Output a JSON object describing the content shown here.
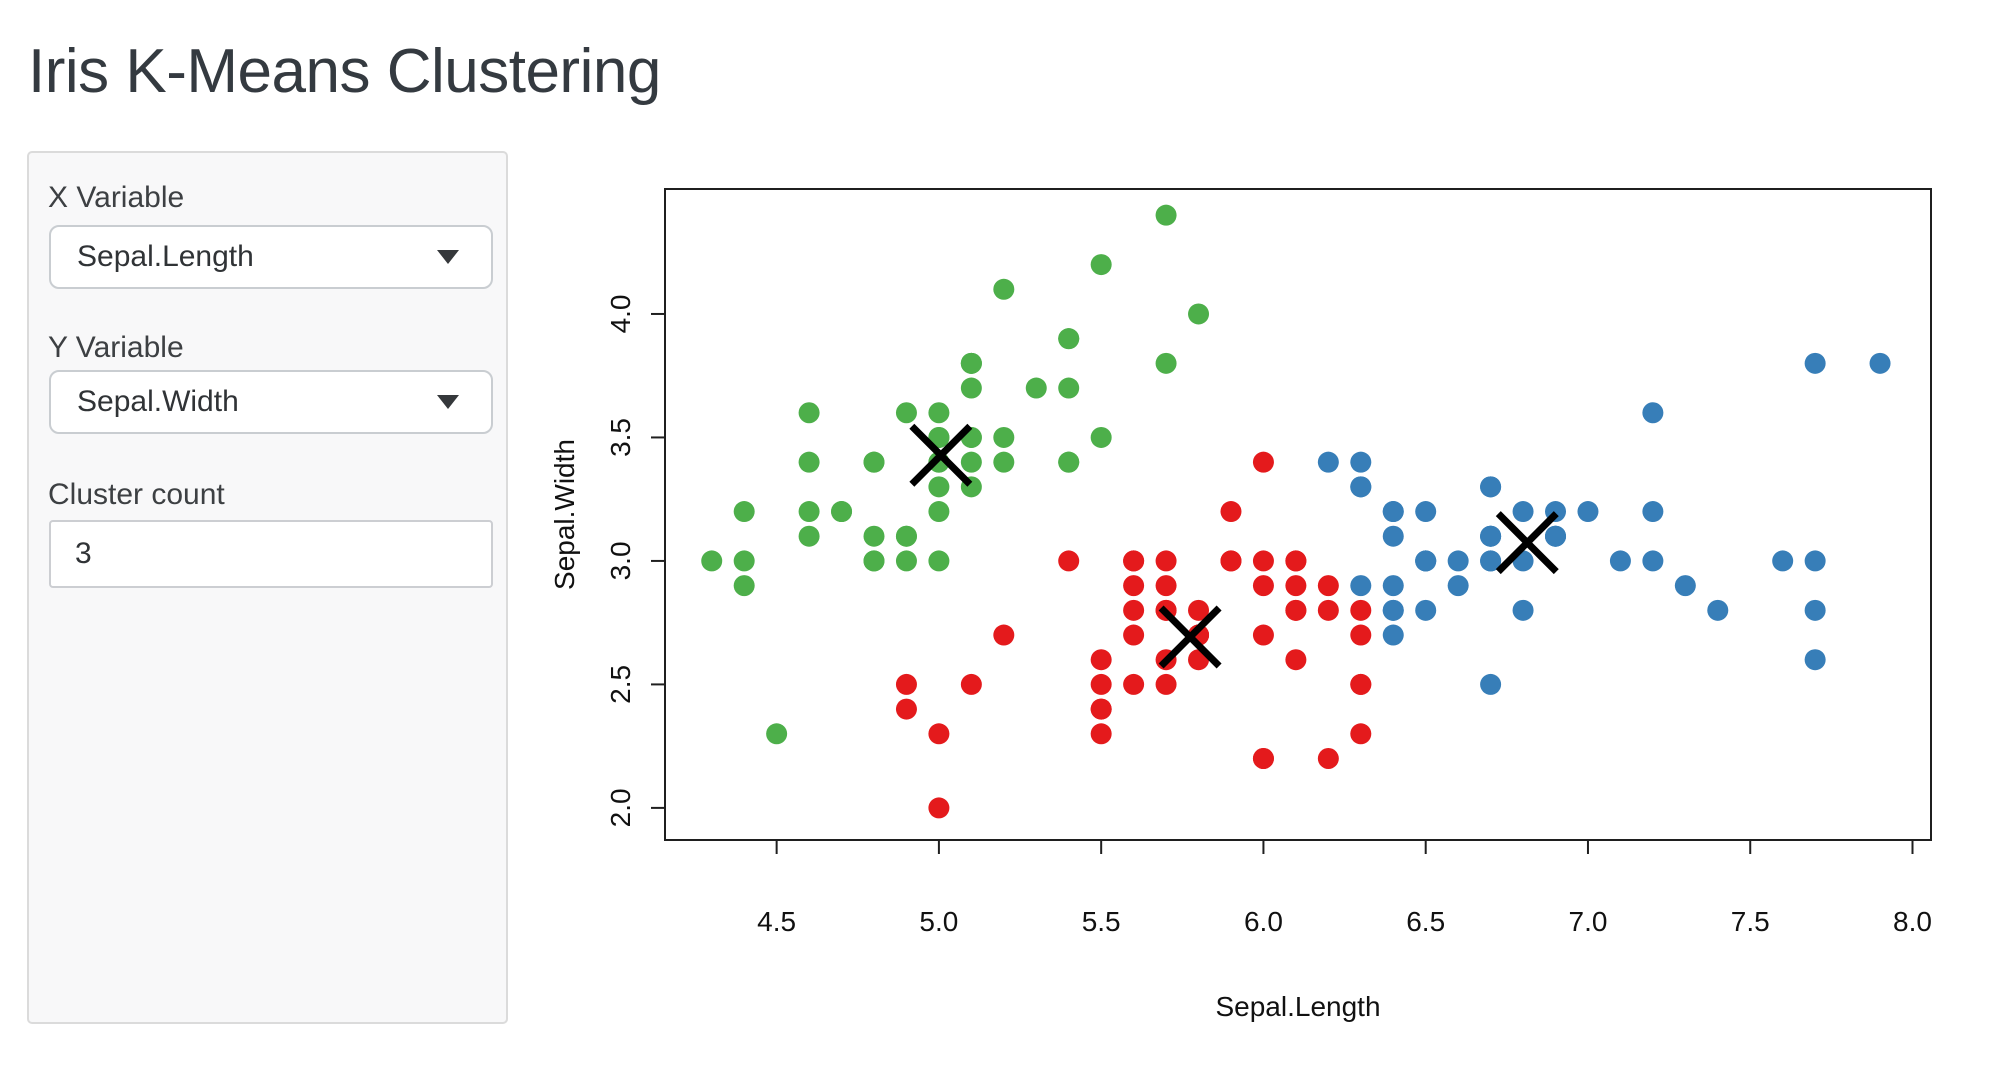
{
  "page": {
    "title": "Iris K-Means Clustering"
  },
  "sidebar": {
    "x_variable": {
      "label": "X Variable",
      "value": "Sepal.Length"
    },
    "y_variable": {
      "label": "Y Variable",
      "value": "Sepal.Width"
    },
    "cluster_count": {
      "label": "Cluster count",
      "value": "3"
    }
  },
  "icons": {
    "dropdown_caret": "triangle-down"
  },
  "colors": {
    "cluster1": "#4daf4a",
    "cluster2": "#e41a1c",
    "cluster3": "#377eb8",
    "center_marker": "#000000",
    "axis": "#1f1f1f",
    "plot_text": "#111111"
  },
  "chart_data": {
    "type": "scatter",
    "xlabel": "Sepal.Length",
    "ylabel": "Sepal.Width",
    "xlim": [
      4.156,
      8.057
    ],
    "ylim": [
      1.87,
      4.506
    ],
    "xticks": [
      4.5,
      5.0,
      5.5,
      6.0,
      6.5,
      7.0,
      7.5,
      8.0
    ],
    "yticks": [
      2.0,
      2.5,
      3.0,
      3.5,
      4.0
    ],
    "grid": false,
    "legend": "none",
    "point_radius_px": 10.5,
    "series": [
      {
        "name": "cluster-1-green",
        "color": "#4daf4a",
        "points": [
          [
            5.1,
            3.5
          ],
          [
            4.9,
            3.0
          ],
          [
            4.7,
            3.2
          ],
          [
            4.6,
            3.1
          ],
          [
            5.0,
            3.6
          ],
          [
            5.4,
            3.9
          ],
          [
            4.6,
            3.4
          ],
          [
            5.0,
            3.4
          ],
          [
            4.4,
            2.9
          ],
          [
            4.9,
            3.1
          ],
          [
            5.4,
            3.7
          ],
          [
            4.8,
            3.4
          ],
          [
            4.8,
            3.0
          ],
          [
            4.3,
            3.0
          ],
          [
            5.8,
            4.0
          ],
          [
            5.7,
            4.4
          ],
          [
            5.4,
            3.9
          ],
          [
            5.1,
            3.5
          ],
          [
            5.7,
            3.8
          ],
          [
            5.1,
            3.8
          ],
          [
            5.4,
            3.4
          ],
          [
            5.1,
            3.7
          ],
          [
            4.6,
            3.6
          ],
          [
            5.1,
            3.3
          ],
          [
            4.8,
            3.4
          ],
          [
            5.0,
            3.0
          ],
          [
            5.0,
            3.4
          ],
          [
            5.2,
            3.5
          ],
          [
            5.2,
            3.4
          ],
          [
            4.7,
            3.2
          ],
          [
            4.8,
            3.1
          ],
          [
            5.4,
            3.4
          ],
          [
            5.2,
            4.1
          ],
          [
            5.5,
            4.2
          ],
          [
            4.9,
            3.1
          ],
          [
            5.0,
            3.2
          ],
          [
            5.5,
            3.5
          ],
          [
            4.9,
            3.6
          ],
          [
            4.4,
            3.0
          ],
          [
            5.1,
            3.4
          ],
          [
            5.0,
            3.5
          ],
          [
            4.5,
            2.3
          ],
          [
            4.4,
            3.2
          ],
          [
            5.0,
            3.5
          ],
          [
            5.1,
            3.8
          ],
          [
            4.8,
            3.0
          ],
          [
            5.1,
            3.8
          ],
          [
            4.6,
            3.2
          ],
          [
            5.3,
            3.7
          ],
          [
            5.0,
            3.3
          ]
        ]
      },
      {
        "name": "cluster-2-red",
        "color": "#e41a1c",
        "points": [
          [
            5.5,
            2.3
          ],
          [
            5.7,
            2.8
          ],
          [
            4.9,
            2.4
          ],
          [
            5.2,
            2.7
          ],
          [
            5.0,
            2.0
          ],
          [
            5.9,
            3.0
          ],
          [
            6.0,
            2.2
          ],
          [
            6.1,
            2.9
          ],
          [
            5.6,
            2.9
          ],
          [
            5.6,
            3.0
          ],
          [
            5.8,
            2.7
          ],
          [
            6.2,
            2.2
          ],
          [
            5.6,
            2.5
          ],
          [
            5.9,
            3.2
          ],
          [
            6.1,
            2.8
          ],
          [
            6.3,
            2.5
          ],
          [
            6.1,
            2.8
          ],
          [
            6.0,
            2.9
          ],
          [
            5.7,
            2.6
          ],
          [
            5.5,
            2.4
          ],
          [
            5.5,
            2.4
          ],
          [
            5.8,
            2.7
          ],
          [
            6.0,
            2.7
          ],
          [
            5.4,
            3.0
          ],
          [
            6.0,
            3.4
          ],
          [
            6.3,
            2.3
          ],
          [
            5.6,
            3.0
          ],
          [
            5.5,
            2.5
          ],
          [
            5.5,
            2.6
          ],
          [
            6.1,
            3.0
          ],
          [
            5.8,
            2.6
          ],
          [
            5.0,
            2.3
          ],
          [
            5.6,
            2.7
          ],
          [
            5.7,
            3.0
          ],
          [
            5.7,
            2.9
          ],
          [
            6.2,
            2.9
          ],
          [
            5.1,
            2.5
          ],
          [
            5.7,
            2.8
          ],
          [
            5.8,
            2.7
          ],
          [
            4.9,
            2.5
          ],
          [
            5.7,
            2.5
          ],
          [
            5.8,
            2.8
          ],
          [
            6.0,
            2.2
          ],
          [
            5.6,
            2.8
          ],
          [
            6.3,
            2.7
          ],
          [
            6.2,
            2.8
          ],
          [
            6.1,
            3.0
          ],
          [
            6.3,
            2.8
          ],
          [
            6.1,
            2.6
          ],
          [
            6.0,
            3.0
          ],
          [
            5.8,
            2.7
          ],
          [
            6.3,
            2.5
          ],
          [
            5.9,
            3.0
          ]
        ]
      },
      {
        "name": "cluster-3-blue",
        "color": "#377eb8",
        "points": [
          [
            7.0,
            3.2
          ],
          [
            6.4,
            3.2
          ],
          [
            6.9,
            3.1
          ],
          [
            6.5,
            2.8
          ],
          [
            6.3,
            3.3
          ],
          [
            6.6,
            2.9
          ],
          [
            6.7,
            3.1
          ],
          [
            6.4,
            2.9
          ],
          [
            6.6,
            3.0
          ],
          [
            6.8,
            2.8
          ],
          [
            6.7,
            3.0
          ],
          [
            6.7,
            3.1
          ],
          [
            6.3,
            3.3
          ],
          [
            7.1,
            3.0
          ],
          [
            6.3,
            2.9
          ],
          [
            6.5,
            3.0
          ],
          [
            7.6,
            3.0
          ],
          [
            7.3,
            2.9
          ],
          [
            6.7,
            2.5
          ],
          [
            7.2,
            3.6
          ],
          [
            6.5,
            3.2
          ],
          [
            6.4,
            2.7
          ],
          [
            6.8,
            3.0
          ],
          [
            6.4,
            3.2
          ],
          [
            6.5,
            3.0
          ],
          [
            7.7,
            3.8
          ],
          [
            7.7,
            2.6
          ],
          [
            6.9,
            3.2
          ],
          [
            7.7,
            2.8
          ],
          [
            6.7,
            3.3
          ],
          [
            7.2,
            3.2
          ],
          [
            6.4,
            2.8
          ],
          [
            7.2,
            3.0
          ],
          [
            7.4,
            2.8
          ],
          [
            7.9,
            3.8
          ],
          [
            6.4,
            2.8
          ],
          [
            7.7,
            3.0
          ],
          [
            6.3,
            3.4
          ],
          [
            6.4,
            3.1
          ],
          [
            6.9,
            3.1
          ],
          [
            6.7,
            3.1
          ],
          [
            6.9,
            3.1
          ],
          [
            6.8,
            3.2
          ],
          [
            6.7,
            3.3
          ],
          [
            6.7,
            3.0
          ],
          [
            6.5,
            3.0
          ],
          [
            6.2,
            3.4
          ]
        ]
      }
    ],
    "centers": {
      "marker": "X",
      "color": "#000000",
      "points": [
        [
          5.006,
          3.428
        ],
        [
          5.774,
          2.692
        ],
        [
          6.813,
          3.074
        ]
      ]
    }
  }
}
